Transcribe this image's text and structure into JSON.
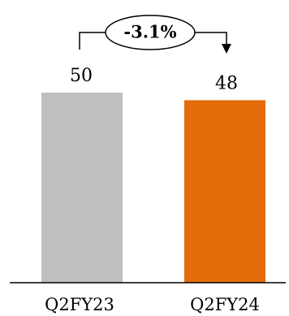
{
  "chart_data": {
    "type": "bar",
    "categories": [
      "Q2FY23",
      "Q2FY24"
    ],
    "values": [
      50,
      48
    ],
    "data_labels": [
      "50",
      "48"
    ],
    "colors": [
      "#bfbfbf",
      "#e46c0a"
    ],
    "ylim": [
      0,
      50
    ],
    "grid": false,
    "legend": "none",
    "annotation": {
      "text": "-3.1%",
      "from": "Q2FY23",
      "to": "Q2FY24"
    }
  }
}
